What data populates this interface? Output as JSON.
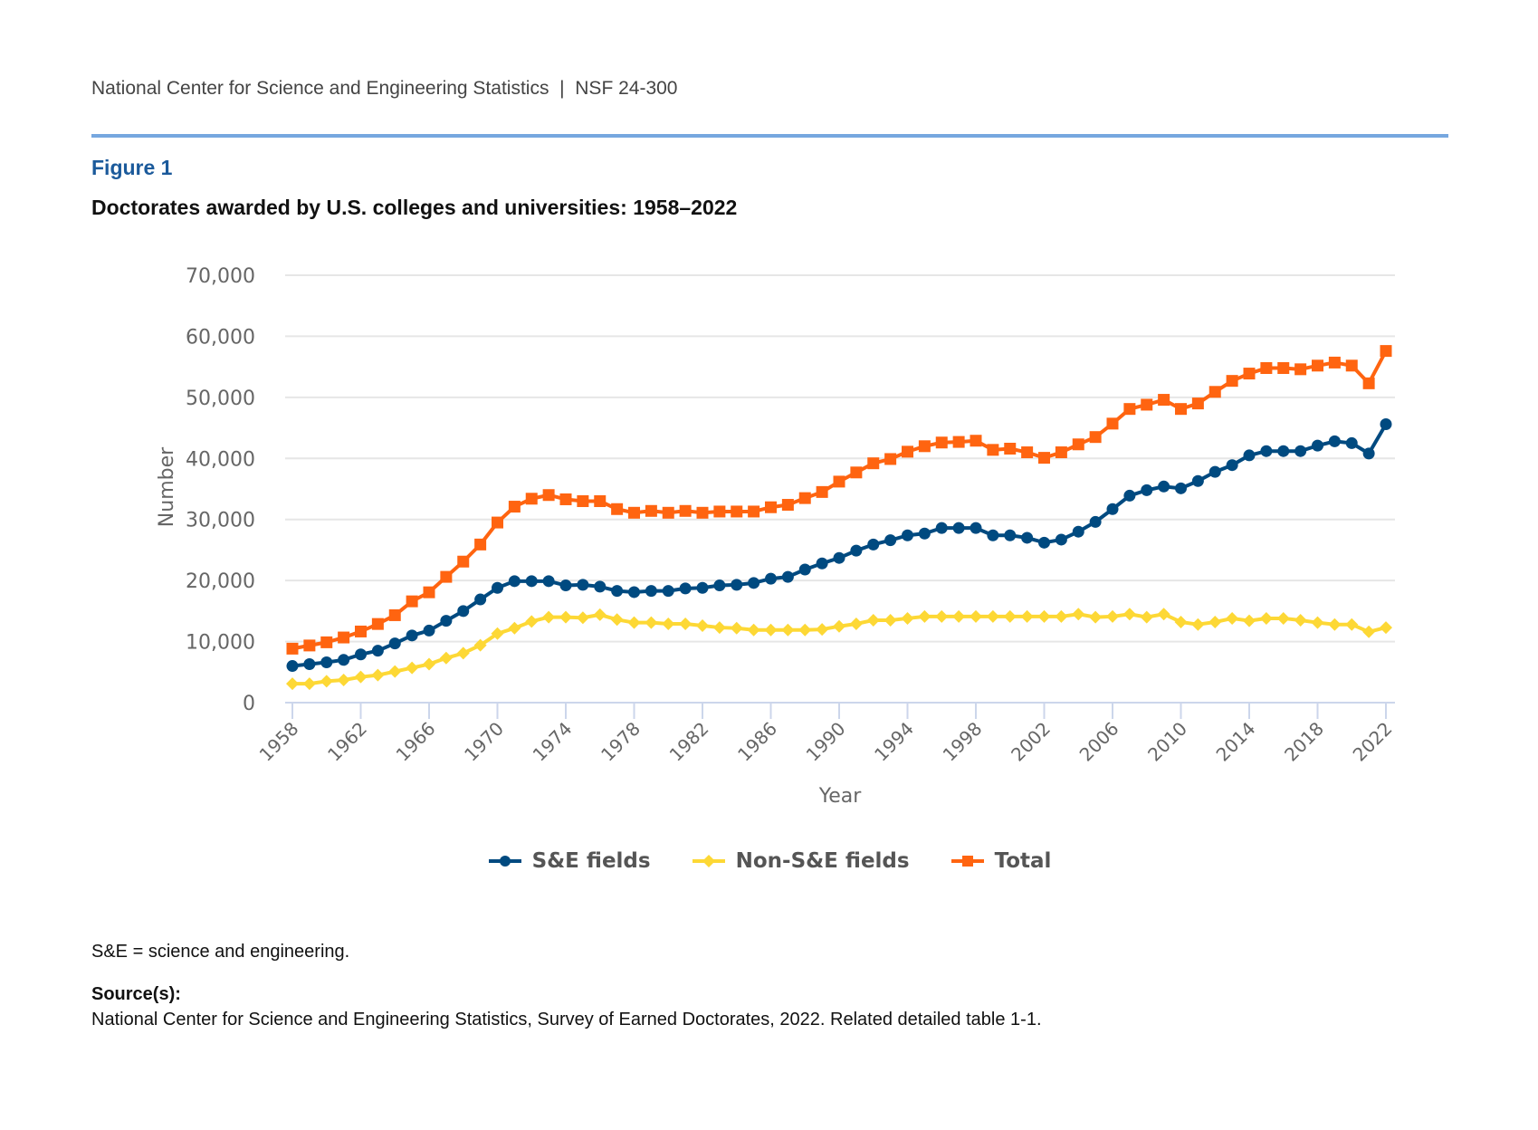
{
  "header": {
    "org": "National Center for Science and Engineering Statistics",
    "separator": "|",
    "report_id": "NSF 24-300"
  },
  "figure": {
    "label": "Figure 1",
    "title": "Doctorates awarded by U.S. colleges and universities: 1958–2022"
  },
  "notes": {
    "abbreviation": "S&E = science and engineering.",
    "source_label": "Source(s):",
    "source_text": "National Center for Science and Engineering Statistics, Survey of Earned Doctorates, 2022. Related detailed table 1-1."
  },
  "chart_data": {
    "type": "line",
    "title": "Doctorates awarded by U.S. colleges and universities: 1958–2022",
    "xlabel": "Year",
    "ylabel": "Number",
    "ylim": [
      0,
      70000
    ],
    "yticks": [
      0,
      10000,
      20000,
      30000,
      40000,
      50000,
      60000,
      70000
    ],
    "ytick_labels": [
      "0",
      "10,000",
      "20,000",
      "30,000",
      "40,000",
      "50,000",
      "60,000",
      "70,000"
    ],
    "xticks": [
      1958,
      1962,
      1966,
      1970,
      1974,
      1978,
      1982,
      1986,
      1990,
      1994,
      1998,
      2002,
      2006,
      2010,
      2014,
      2018,
      2022
    ],
    "xtick_labels": [
      "1958",
      "1962",
      "1966",
      "1970",
      "1974",
      "1978",
      "1982",
      "1986",
      "1990",
      "1994",
      "1998",
      "2002",
      "2006",
      "2010",
      "2014",
      "2018",
      "2022"
    ],
    "grid": "horizontal",
    "legend_position": "bottom-center",
    "x": [
      1958,
      1959,
      1960,
      1961,
      1962,
      1963,
      1964,
      1965,
      1966,
      1967,
      1968,
      1969,
      1970,
      1971,
      1972,
      1973,
      1974,
      1975,
      1976,
      1977,
      1978,
      1979,
      1980,
      1981,
      1982,
      1983,
      1984,
      1985,
      1986,
      1987,
      1988,
      1989,
      1990,
      1991,
      1992,
      1993,
      1994,
      1995,
      1996,
      1997,
      1998,
      1999,
      2000,
      2001,
      2002,
      2003,
      2004,
      2005,
      2006,
      2007,
      2008,
      2009,
      2010,
      2011,
      2012,
      2013,
      2014,
      2015,
      2016,
      2017,
      2018,
      2019,
      2020,
      2021,
      2022
    ],
    "series": [
      {
        "name": "S&E fields",
        "color": "#004a80",
        "marker": "circle",
        "values": [
          6000,
          6300,
          6600,
          7000,
          7900,
          8500,
          9700,
          11000,
          11800,
          13400,
          15000,
          16900,
          18800,
          19900,
          19900,
          19900,
          19200,
          19300,
          19000,
          18300,
          18100,
          18300,
          18300,
          18700,
          18800,
          19200,
          19300,
          19600,
          20300,
          20600,
          21800,
          22800,
          23700,
          24900,
          25900,
          26600,
          27400,
          27700,
          28600,
          28600,
          28600,
          27400,
          27400,
          27000,
          26200,
          26700,
          28000,
          29600,
          31700,
          33900,
          34800,
          35400,
          35100,
          36300,
          37800,
          38900,
          40500,
          41200,
          41200,
          41200,
          42100,
          42800,
          42500,
          40800,
          45600
        ]
      },
      {
        "name": "Non-S&E fields",
        "color": "#fdd835",
        "marker": "diamond",
        "values": [
          3100,
          3100,
          3500,
          3700,
          4200,
          4500,
          5100,
          5700,
          6300,
          7300,
          8100,
          9400,
          11300,
          12200,
          13300,
          14000,
          14000,
          13900,
          14400,
          13600,
          13100,
          13100,
          12900,
          12900,
          12600,
          12300,
          12200,
          11900,
          11900,
          11900,
          11900,
          12000,
          12500,
          12900,
          13500,
          13500,
          13800,
          14100,
          14100,
          14100,
          14100,
          14100,
          14100,
          14100,
          14100,
          14100,
          14500,
          14000,
          14100,
          14500,
          14000,
          14500,
          13200,
          12800,
          13200,
          13800,
          13400,
          13800,
          13800,
          13500,
          13100,
          12800,
          12800,
          11600,
          12300
        ]
      },
      {
        "name": "Total",
        "color": "#ff6410",
        "marker": "square",
        "values": [
          8840,
          9360,
          9880,
          10670,
          11650,
          12880,
          14320,
          16590,
          18070,
          20600,
          23100,
          25900,
          29500,
          32100,
          33400,
          34000,
          33300,
          33000,
          33000,
          31700,
          31100,
          31400,
          31100,
          31400,
          31100,
          31300,
          31300,
          31300,
          32000,
          32400,
          33500,
          34500,
          36200,
          37700,
          39200,
          39900,
          41100,
          42000,
          42600,
          42700,
          42900,
          41400,
          41600,
          41000,
          40100,
          41000,
          42300,
          43500,
          45700,
          48100,
          48800,
          49600,
          48100,
          49000,
          50900,
          52700,
          53900,
          54800,
          54800,
          54600,
          55200,
          55700,
          55200,
          52300,
          57600
        ]
      }
    ]
  }
}
